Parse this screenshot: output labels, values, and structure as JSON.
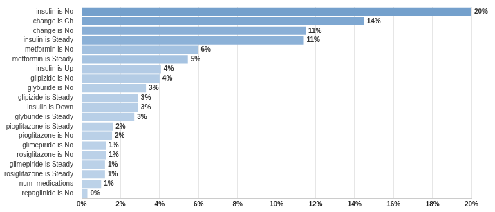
{
  "chart_data": {
    "type": "bar",
    "orientation": "horizontal",
    "categories": [
      "insulin is No",
      "change is Ch",
      "change is No",
      "insulin is Steady",
      "metformin is No",
      "metformin is Steady",
      "insulin is Up",
      "glipizide is No",
      "glyburide is No",
      "glipizide is Steady",
      "insulin is Down",
      "glyburide is Steady",
      "pioglitazone is Steady",
      "pioglitazone is No",
      "glimepiride is No",
      "rosiglitazone is No",
      "glimepiride is Steady",
      "rosiglitazone is Steady",
      "num_medications",
      "repaglinide is No"
    ],
    "values": [
      20.0,
      14.49,
      11.49,
      11.4,
      5.97,
      5.45,
      4.07,
      4.0,
      3.3,
      2.9,
      2.9,
      2.7,
      1.6,
      1.56,
      1.25,
      1.25,
      1.2,
      1.2,
      1.0,
      0.3
    ],
    "value_labels": [
      "20%",
      "14%",
      "11%",
      "11%",
      "6%",
      "5%",
      "4%",
      "4%",
      "3%",
      "3%",
      "3%",
      "3%",
      "2%",
      "2%",
      "1%",
      "1%",
      "1%",
      "1%",
      "1%",
      "0%"
    ],
    "colors": [
      "#74a0cc",
      "#7ea7d1",
      "#8aafd6",
      "#8cb1d7",
      "#a3c1e0",
      "#a6c3e1",
      "#b3cbe5",
      "#b4cce5",
      "#b6cee6",
      "#b7cee6",
      "#b7cee6",
      "#b8cfe7",
      "#bad0e7",
      "#bad0e7",
      "#bbd1e8",
      "#bbd1e8",
      "#bbd1e8",
      "#bbd1e8",
      "#bcd2e8",
      "#bcd2e8"
    ],
    "xlim": [
      0,
      20
    ],
    "xticks": [
      {
        "value": 0,
        "label": "0%"
      },
      {
        "value": 2,
        "label": "2%"
      },
      {
        "value": 4,
        "label": "4%"
      },
      {
        "value": 6,
        "label": "6%"
      },
      {
        "value": 8,
        "label": "8%"
      },
      {
        "value": 10,
        "label": "10%"
      },
      {
        "value": 12,
        "label": "12%"
      },
      {
        "value": 14,
        "label": "14%"
      },
      {
        "value": 16,
        "label": "16%"
      },
      {
        "value": 18,
        "label": "18%"
      },
      {
        "value": 20,
        "label": "20%"
      }
    ],
    "grid": true,
    "data_labels": true
  }
}
